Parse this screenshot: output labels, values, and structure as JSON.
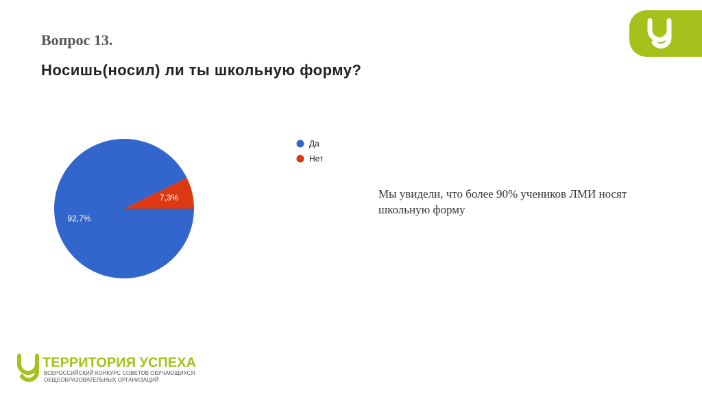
{
  "heading": "Вопрос 13.",
  "chart_data": {
    "type": "pie",
    "title": "Носишь(носил) ли ты школьную форму?",
    "categories": [
      "Да",
      "Нет"
    ],
    "values": [
      92.7,
      7.3
    ],
    "value_labels": [
      "92,7%",
      "7,3%"
    ],
    "colors": [
      "#3366cc",
      "#dc3912"
    ],
    "legend": "right"
  },
  "comment": "Мы увидели, что более 90% учеников ЛМИ носят школьную форму",
  "footer": {
    "brand": "ТЕРРИТОРИЯ УСПЕХА",
    "line1": "ВСЕРОССИЙСКИЙ КОНКУРС СОВЕТОВ ОБУЧАЮЩИХСЯ",
    "line2": "ОБЩЕОБРАЗОВАТЕЛЬНЫХ ОРГАНИЗАЦИЙ"
  }
}
